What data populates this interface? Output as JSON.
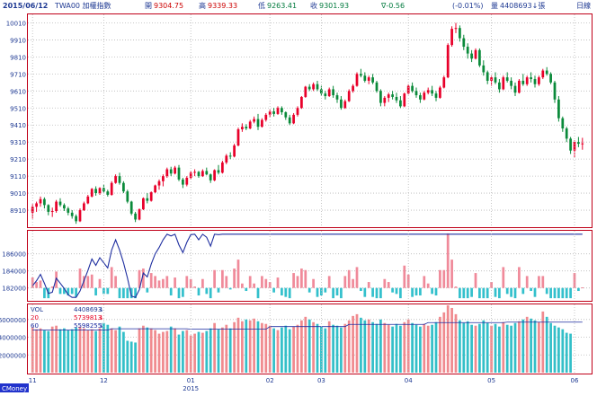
{
  "header": {
    "date": "2015/06/12",
    "symbol": "TWA00 加權指數",
    "open_label": "開",
    "open": "9304.75",
    "high_label": "高",
    "high": "9339.33",
    "low_label": "低",
    "low": "9263.41",
    "close_label": "收",
    "close": "9301.93",
    "change": "∇-0.56",
    "change_pct": "(-0.01%)",
    "volume_label": "量",
    "volume": "4408693↓張",
    "period": "日線"
  },
  "colors": {
    "up": "#e8002a",
    "down": "#0a8a3a",
    "grid": "#b8b8b8",
    "frame": "#c00018",
    "header_blue": "#1f3a93",
    "header_red": "#cc0000",
    "header_green": "#007a3d",
    "osc_pos": "#f08a9a",
    "osc_neg": "#33c0cc",
    "osc_line": "#1f2fa0",
    "vol_up": "#f08a8f",
    "vol_down": "#33bfc8",
    "ma20": "#e80020",
    "ma60": "#1a2aa0",
    "badge_bg": "#2233cc"
  },
  "badge": "CMoney",
  "chart_data": [
    {
      "type": "candlestick",
      "title": "TWA00 加權指數 日線",
      "y_ticks": [
        "10010",
        "9910",
        "9810",
        "9710",
        "9610",
        "9510",
        "9410",
        "9310",
        "9210",
        "9110",
        "9010",
        "8910"
      ],
      "ylim": [
        8810,
        10060
      ],
      "x_month_labels": [
        "11",
        "12",
        "01",
        "02",
        "03",
        "04",
        "05",
        "06"
      ],
      "x_month_index": [
        0,
        18,
        40,
        60,
        73,
        95,
        116,
        137
      ],
      "x_year_label": "2015",
      "candles": [
        [
          8895,
          8945,
          8860,
          8930
        ],
        [
          8930,
          8960,
          8900,
          8950
        ],
        [
          8950,
          8990,
          8930,
          8975
        ],
        [
          8975,
          8985,
          8920,
          8940
        ],
        [
          8940,
          8945,
          8880,
          8900
        ],
        [
          8900,
          8925,
          8870,
          8905
        ],
        [
          8905,
          8970,
          8895,
          8960
        ],
        [
          8960,
          8980,
          8930,
          8940
        ],
        [
          8940,
          8950,
          8905,
          8920
        ],
        [
          8920,
          8930,
          8880,
          8895
        ],
        [
          8895,
          8910,
          8860,
          8875
        ],
        [
          8875,
          8885,
          8830,
          8845
        ],
        [
          8845,
          8920,
          8840,
          8910
        ],
        [
          8910,
          8960,
          8905,
          8950
        ],
        [
          8950,
          9000,
          8945,
          8990
        ],
        [
          8990,
          9040,
          8985,
          9035
        ],
        [
          9035,
          9050,
          8995,
          9010
        ],
        [
          9010,
          9045,
          9000,
          9040
        ],
        [
          9040,
          9060,
          9010,
          9020
        ],
        [
          9020,
          9030,
          8990,
          9000
        ],
        [
          9000,
          9080,
          8995,
          9070
        ],
        [
          9070,
          9120,
          9065,
          9110
        ],
        [
          9110,
          9130,
          9060,
          9070
        ],
        [
          9070,
          9080,
          9010,
          9020
        ],
        [
          9020,
          9030,
          8950,
          8960
        ],
        [
          8960,
          8965,
          8880,
          8890
        ],
        [
          8890,
          8900,
          8840,
          8855
        ],
        [
          8855,
          8920,
          8850,
          8915
        ],
        [
          8915,
          8985,
          8910,
          8980
        ],
        [
          8980,
          9010,
          8950,
          8965
        ],
        [
          8965,
          9020,
          8960,
          9015
        ],
        [
          9015,
          9060,
          9010,
          9055
        ],
        [
          9055,
          9090,
          9030,
          9080
        ],
        [
          9080,
          9120,
          9050,
          9110
        ],
        [
          9110,
          9160,
          9100,
          9150
        ],
        [
          9150,
          9165,
          9110,
          9125
        ],
        [
          9125,
          9170,
          9120,
          9160
        ],
        [
          9160,
          9175,
          9080,
          9090
        ],
        [
          9090,
          9100,
          9040,
          9060
        ],
        [
          9060,
          9110,
          9050,
          9100
        ],
        [
          9100,
          9140,
          9090,
          9130
        ],
        [
          9130,
          9150,
          9110,
          9135
        ],
        [
          9135,
          9140,
          9100,
          9110
        ],
        [
          9110,
          9150,
          9105,
          9140
        ],
        [
          9140,
          9160,
          9115,
          9120
        ],
        [
          9120,
          9125,
          9070,
          9085
        ],
        [
          9085,
          9150,
          9080,
          9145
        ],
        [
          9145,
          9175,
          9120,
          9130
        ],
        [
          9130,
          9200,
          9125,
          9190
        ],
        [
          9190,
          9240,
          9180,
          9230
        ],
        [
          9230,
          9250,
          9210,
          9225
        ],
        [
          9225,
          9300,
          9220,
          9290
        ],
        [
          9290,
          9395,
          9285,
          9385
        ],
        [
          9385,
          9420,
          9370,
          9400
        ],
        [
          9400,
          9415,
          9380,
          9390
        ],
        [
          9390,
          9440,
          9385,
          9430
        ],
        [
          9430,
          9460,
          9420,
          9445
        ],
        [
          9445,
          9475,
          9380,
          9400
        ],
        [
          9400,
          9450,
          9395,
          9440
        ],
        [
          9440,
          9480,
          9430,
          9470
        ],
        [
          9470,
          9500,
          9455,
          9490
        ],
        [
          9490,
          9510,
          9460,
          9475
        ],
        [
          9475,
          9520,
          9470,
          9510
        ],
        [
          9510,
          9520,
          9470,
          9485
        ],
        [
          9485,
          9490,
          9440,
          9455
        ],
        [
          9455,
          9470,
          9410,
          9420
        ],
        [
          9420,
          9480,
          9415,
          9470
        ],
        [
          9470,
          9520,
          9460,
          9510
        ],
        [
          9510,
          9580,
          9505,
          9575
        ],
        [
          9575,
          9640,
          9570,
          9635
        ],
        [
          9635,
          9650,
          9610,
          9620
        ],
        [
          9620,
          9660,
          9610,
          9650
        ],
        [
          9650,
          9670,
          9610,
          9620
        ],
        [
          9620,
          9640,
          9580,
          9595
        ],
        [
          9595,
          9610,
          9560,
          9580
        ],
        [
          9580,
          9630,
          9575,
          9620
        ],
        [
          9620,
          9640,
          9570,
          9585
        ],
        [
          9585,
          9600,
          9540,
          9560
        ],
        [
          9560,
          9580,
          9500,
          9510
        ],
        [
          9510,
          9560,
          9505,
          9550
        ],
        [
          9550,
          9620,
          9545,
          9610
        ],
        [
          9610,
          9650,
          9600,
          9640
        ],
        [
          9640,
          9720,
          9635,
          9710
        ],
        [
          9710,
          9740,
          9690,
          9700
        ],
        [
          9700,
          9720,
          9660,
          9670
        ],
        [
          9670,
          9700,
          9650,
          9690
        ],
        [
          9690,
          9710,
          9650,
          9660
        ],
        [
          9660,
          9670,
          9600,
          9610
        ],
        [
          9610,
          9620,
          9520,
          9540
        ],
        [
          9540,
          9580,
          9520,
          9570
        ],
        [
          9570,
          9600,
          9545,
          9590
        ],
        [
          9590,
          9610,
          9560,
          9575
        ],
        [
          9575,
          9600,
          9540,
          9555
        ],
        [
          9555,
          9580,
          9510,
          9520
        ],
        [
          9520,
          9600,
          9515,
          9595
        ],
        [
          9595,
          9650,
          9590,
          9640
        ],
        [
          9640,
          9660,
          9600,
          9610
        ],
        [
          9610,
          9630,
          9570,
          9585
        ],
        [
          9585,
          9600,
          9540,
          9560
        ],
        [
          9560,
          9610,
          9555,
          9600
        ],
        [
          9600,
          9630,
          9590,
          9615
        ],
        [
          9615,
          9640,
          9580,
          9595
        ],
        [
          9595,
          9610,
          9550,
          9570
        ],
        [
          9570,
          9640,
          9565,
          9630
        ],
        [
          9630,
          9700,
          9625,
          9690
        ],
        [
          9690,
          9890,
          9685,
          9880
        ],
        [
          9880,
          9990,
          9870,
          9975
        ],
        [
          9975,
          10010,
          9950,
          9980
        ],
        [
          9980,
          9995,
          9900,
          9920
        ],
        [
          9920,
          9940,
          9850,
          9870
        ],
        [
          9870,
          9890,
          9800,
          9830
        ],
        [
          9830,
          9850,
          9780,
          9800
        ],
        [
          9800,
          9860,
          9795,
          9850
        ],
        [
          9850,
          9860,
          9750,
          9760
        ],
        [
          9760,
          9790,
          9700,
          9720
        ],
        [
          9720,
          9730,
          9650,
          9670
        ],
        [
          9670,
          9700,
          9640,
          9690
        ],
        [
          9690,
          9720,
          9650,
          9660
        ],
        [
          9660,
          9680,
          9600,
          9620
        ],
        [
          9620,
          9700,
          9615,
          9690
        ],
        [
          9690,
          9720,
          9660,
          9670
        ],
        [
          9670,
          9690,
          9620,
          9640
        ],
        [
          9640,
          9660,
          9580,
          9600
        ],
        [
          9600,
          9680,
          9595,
          9670
        ],
        [
          9670,
          9710,
          9640,
          9650
        ],
        [
          9650,
          9700,
          9640,
          9690
        ],
        [
          9690,
          9720,
          9660,
          9680
        ],
        [
          9680,
          9700,
          9630,
          9650
        ],
        [
          9650,
          9700,
          9640,
          9690
        ],
        [
          9690,
          9740,
          9680,
          9730
        ],
        [
          9730,
          9750,
          9700,
          9710
        ],
        [
          9710,
          9720,
          9650,
          9660
        ],
        [
          9660,
          9670,
          9540,
          9560
        ],
        [
          9560,
          9580,
          9430,
          9450
        ],
        [
          9450,
          9460,
          9370,
          9390
        ],
        [
          9390,
          9400,
          9310,
          9330
        ],
        [
          9330,
          9340,
          9240,
          9260
        ],
        [
          9260,
          9320,
          9220,
          9310
        ],
        [
          9310,
          9340,
          9280,
          9300
        ],
        [
          9300,
          9335,
          9265,
          9302
        ]
      ]
    },
    {
      "type": "bar",
      "title": "Oscillator",
      "y_ticks": [
        "186000",
        "184000",
        "182000"
      ],
      "ylim": [
        180600,
        188600
      ],
      "zero_value": 182000
    },
    {
      "type": "bar",
      "title": "Volume",
      "legend": [
        {
          "name": "VOL",
          "value": "4408693",
          "arrow": "↓"
        },
        {
          "name": "20",
          "value": "5739813",
          "arrow": "↓"
        },
        {
          "name": "60",
          "value": "5598255",
          "arrow": "↓"
        }
      ],
      "y_ticks": [
        "6000000",
        "4000000",
        "2000000"
      ],
      "ylim": [
        0,
        7600000
      ],
      "volumes": [
        5100000,
        4900000,
        5000000,
        4800000,
        4700000,
        5200000,
        5300000,
        4900000,
        5000000,
        4800000,
        4900000,
        5100000,
        5200000,
        5000000,
        4800000,
        4900000,
        4700000,
        5000000,
        5600000,
        5400000,
        5000000,
        4800000,
        5200000,
        4600000,
        3600000,
        3500000,
        3400000,
        5000000,
        5300000,
        5100000,
        5000000,
        4800000,
        4400000,
        4600000,
        4700000,
        5200000,
        5000000,
        4300000,
        4700000,
        4800000,
        4200000,
        4400000,
        4600000,
        4500000,
        4700000,
        5000000,
        5600000,
        4900000,
        5100000,
        5400000,
        5000000,
        5700000,
        6200000,
        5800000,
        6000000,
        5900000,
        6100000,
        5800000,
        5600000,
        5500000,
        5300000,
        5000000,
        4800000,
        5100000,
        5300000,
        4900000,
        5200000,
        5400000,
        5900000,
        6300000,
        6000000,
        5700000,
        5500000,
        5200000,
        5000000,
        5800000,
        5400000,
        5300000,
        5100000,
        5500000,
        5900000,
        6400000,
        6600000,
        6200000,
        5900000,
        6000000,
        5700000,
        5500000,
        6000000,
        5600000,
        5400000,
        5200000,
        5500000,
        5300000,
        5700000,
        6000000,
        5600000,
        5400000,
        5200000,
        5500000,
        5300000,
        5400000,
        5700000,
        6300000,
        6800000,
        7600000,
        7300000,
        6600000,
        5900000,
        5600000,
        5800000,
        5400000,
        5300000,
        5500000,
        5900000,
        5600000,
        5300000,
        5500000,
        5200000,
        5700000,
        5400000,
        5300000,
        5600000,
        5800000,
        6000000,
        6300000,
        6100000,
        5900000,
        5700000,
        6900000,
        6300000,
        5600000,
        5300000,
        5100000,
        4900000,
        4500000,
        4400000
      ],
      "ma20": [
        4800000,
        4800000,
        4800000,
        4800000,
        4800000,
        4800000,
        4800000,
        4800000,
        4800000,
        4800000,
        4800000,
        4800000,
        4800000,
        4800000,
        4800000,
        4800000,
        4800000,
        4800000,
        4800000,
        4800000,
        4950000,
        4950000,
        4950000,
        4950000,
        4950000,
        4950000,
        4950000,
        4950000,
        4950000,
        4950000,
        4950000,
        4950000,
        4950000,
        4950000,
        4950000,
        4950000,
        4950000,
        4950000,
        4950000,
        4950000,
        4900000,
        4900000,
        4900000,
        4900000,
        4900000,
        4900000,
        4900000,
        4900000,
        4900000,
        4900000,
        4900000,
        4900000,
        4900000,
        4900000,
        4900000,
        4900000,
        4900000,
        4900000,
        4900000,
        4900000,
        5200000,
        5200000,
        5200000,
        5200000,
        5200000,
        5200000,
        5200000,
        5200000,
        5200000,
        5200000,
        5200000,
        5200000,
        5200000,
        5200000,
        5200000,
        5200000,
        5200000,
        5200000,
        5200000,
        5200000,
        5450000,
        5450000,
        5450000,
        5450000,
        5450000,
        5450000,
        5450000,
        5450000,
        5450000,
        5450000,
        5450000,
        5450000,
        5450000,
        5450000,
        5450000,
        5450000,
        5450000,
        5450000,
        5450000,
        5450000,
        5650000,
        5650000,
        5650000,
        5650000,
        5650000,
        5650000,
        5650000,
        5650000,
        5650000,
        5650000,
        5650000,
        5650000,
        5650000,
        5650000,
        5650000,
        5650000,
        5650000,
        5650000,
        5650000,
        5650000,
        5700000,
        5700000,
        5700000,
        5700000,
        5700000,
        5700000,
        5700000,
        5700000,
        5700000,
        5700000,
        5700000,
        5700000,
        5700000,
        5700000,
        5700000,
        5700000,
        5700000,
        5700000,
        5700000,
        5700000
      ]
    }
  ]
}
